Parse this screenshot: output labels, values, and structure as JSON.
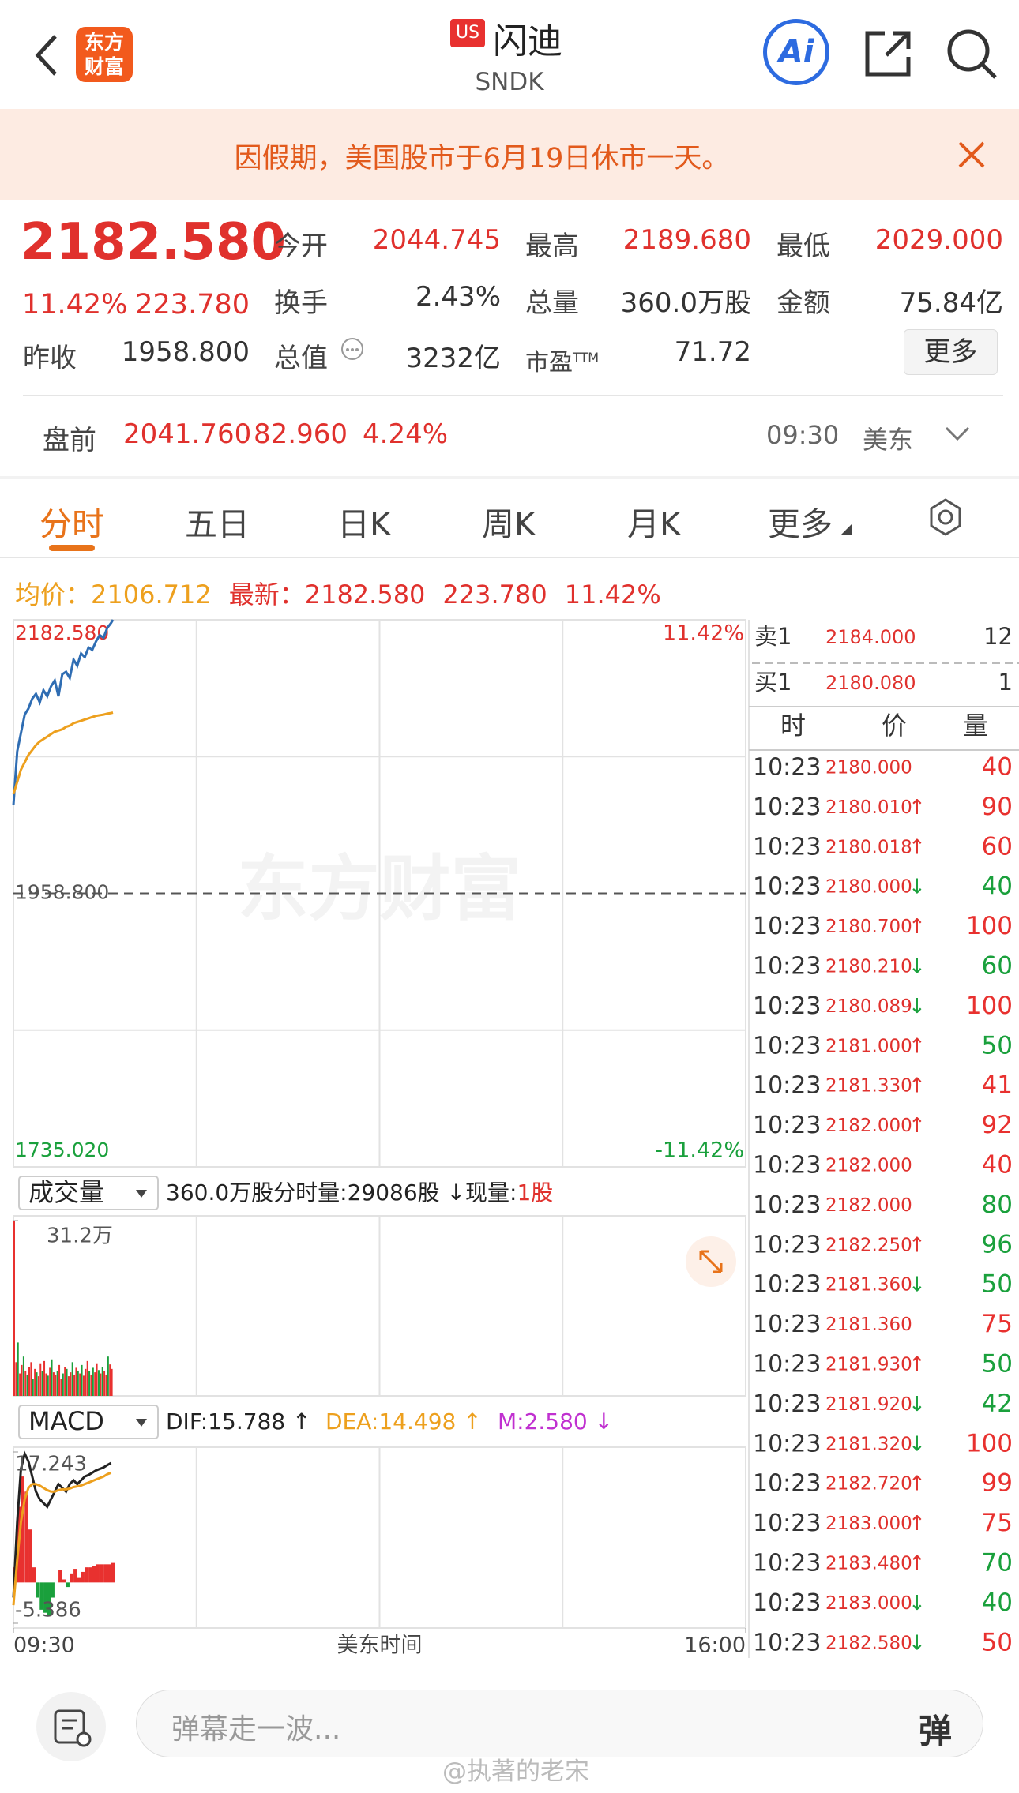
{
  "header": {
    "market_badge": "US",
    "name": "闪迪",
    "ticker": "SNDK",
    "logo_top": "东方",
    "logo_bottom": "财富",
    "ai": "Ai"
  },
  "notice": "因假期，美国股市于6月19日休市一天。",
  "quote": {
    "price": "2182.580",
    "change_pct": "11.42%",
    "change": "223.780",
    "open_label": "今开",
    "open": "2044.745",
    "high_label": "最高",
    "high": "2189.680",
    "low_label": "最低",
    "low": "2029.000",
    "turnover_label": "换手",
    "turnover": "2.43%",
    "volume_label": "总量",
    "volume": "360.0万股",
    "amount_label": "金额",
    "amount": "75.84亿",
    "prev_close_label": "昨收",
    "prev_close": "1958.800",
    "market_cap_label": "总值",
    "market_cap": "3232亿",
    "pe_label": "市盈",
    "pe_suffix": "TTM",
    "pe": "71.72",
    "more": "更多"
  },
  "premarket": {
    "label": "盘前",
    "price": "2041.760",
    "change": "82.960",
    "change_pct": "4.24%",
    "time": "09:30",
    "zone": "美东"
  },
  "tabs": [
    "分时",
    "五日",
    "日K",
    "周K",
    "月K",
    "更多"
  ],
  "summary": {
    "avg_label": "均价：",
    "avg": "2106.712",
    "latest_label": "最新：",
    "latest": "2182.580",
    "change": "223.780",
    "change_pct": "11.42%"
  },
  "intraday_chart": {
    "type": "line",
    "watermark": "东方财富",
    "xlim": [
      0,
      390
    ],
    "xticks": [
      {
        "value": 0,
        "label": "09:30"
      },
      {
        "value": 390,
        "label": "16:00"
      }
    ],
    "xlabel": "美东时间",
    "ylim": [
      1735.02,
      2182.58
    ],
    "yticks": [
      {
        "value": 1735.02,
        "label": "1735.020"
      },
      {
        "value": 1958.8,
        "label": "1958.800"
      },
      {
        "value": 2182.58,
        "label": "2182.580"
      }
    ],
    "y2lim": [
      -11.42,
      11.42
    ],
    "y2ticks": [
      {
        "value": -11.42,
        "label": "-11.42%"
      },
      {
        "value": 11.42,
        "label": "11.42%"
      }
    ],
    "x": [
      0,
      2,
      4,
      6,
      8,
      10,
      12,
      14,
      16,
      18,
      20,
      22,
      24,
      26,
      28,
      30,
      32,
      34,
      36,
      38,
      40,
      42,
      44,
      46,
      48,
      50,
      52,
      53
    ],
    "series": [
      {
        "color": "#2f6db3",
        "values": [
          2031,
          2075,
          2090,
          2105,
          2110,
          2118,
          2122,
          2115,
          2125,
          2120,
          2128,
          2133,
          2120,
          2138,
          2140,
          2135,
          2150,
          2145,
          2155,
          2152,
          2160,
          2158,
          2165,
          2170,
          2168,
          2176,
          2180,
          2182.58
        ]
      },
      {
        "color": "#eda01e",
        "values": [
          2040,
          2050,
          2060,
          2066,
          2072,
          2076,
          2080,
          2083,
          2085,
          2087,
          2089,
          2091,
          2092,
          2093,
          2095,
          2096,
          2098,
          2099,
          2100,
          2101,
          2102,
          2103,
          2104,
          2104.5,
          2105,
          2105.8,
          2106.3,
          2106.712
        ]
      }
    ]
  },
  "volume_chart": {
    "type": "bar",
    "selector": "成交量",
    "total": "360.0万股",
    "per_min_label": "分时量:",
    "per_min": "29086股 ↓",
    "now_label": "现量:",
    "now": "1股",
    "ylim": [
      0,
      312000
    ],
    "yticks": [
      {
        "value": 312000,
        "label": "31.2万"
      }
    ],
    "x": [
      0,
      1,
      2,
      3,
      4,
      5,
      6,
      7,
      8,
      9,
      10,
      11,
      12,
      13,
      14,
      15,
      16,
      17,
      18,
      19,
      20,
      21,
      22,
      23,
      24,
      25,
      26,
      27,
      28,
      29,
      30,
      31,
      32,
      33,
      34,
      35,
      36,
      37,
      38,
      39,
      40,
      41,
      42,
      43,
      44,
      45,
      46,
      47,
      48,
      49,
      50,
      51,
      52
    ],
    "values": [
      312000,
      60000,
      95000,
      40000,
      55000,
      70000,
      45000,
      38000,
      52000,
      60000,
      30000,
      48000,
      42000,
      35000,
      58000,
      44000,
      62000,
      40000,
      36000,
      50000,
      65000,
      42000,
      38000,
      45000,
      55000,
      30000,
      40000,
      52000,
      48000,
      35000,
      42000,
      60000,
      38000,
      50000,
      45000,
      40000,
      55000,
      36000,
      48000,
      62000,
      44000,
      38000,
      50000,
      42000,
      58000,
      46000,
      40000,
      52000,
      45000,
      38000,
      70000,
      56000,
      48000
    ],
    "colors": [
      "#e8312f",
      "#e8312f",
      "#1aa03c",
      "#e8312f",
      "#e8312f",
      "#1aa03c",
      "#e8312f",
      "#1aa03c",
      "#e8312f",
      "#e8312f",
      "#1aa03c",
      "#e8312f",
      "#1aa03c",
      "#e8312f",
      "#e8312f",
      "#1aa03c",
      "#e8312f",
      "#e8312f",
      "#1aa03c",
      "#e8312f",
      "#1aa03c",
      "#e8312f",
      "#e8312f",
      "#1aa03c",
      "#e8312f",
      "#e8312f",
      "#1aa03c",
      "#e8312f",
      "#1aa03c",
      "#e8312f",
      "#e8312f",
      "#1aa03c",
      "#e8312f",
      "#e8312f",
      "#1aa03c",
      "#e8312f",
      "#1aa03c",
      "#e8312f",
      "#e8312f",
      "#e8312f",
      "#1aa03c",
      "#e8312f",
      "#1aa03c",
      "#e8312f",
      "#e8312f",
      "#1aa03c",
      "#e8312f",
      "#1aa03c",
      "#e8312f",
      "#e8312f",
      "#1aa03c",
      "#e8312f",
      "#e8312f"
    ]
  },
  "macd_chart": {
    "type": "line",
    "selector": "MACD",
    "dif": "DIF:15.788 ↑",
    "dea": "DEA:14.498 ↑",
    "m": "M:2.580 ↓",
    "ylim": [
      -5.386,
      17.243
    ],
    "yticks": [
      -5.386,
      17.243
    ],
    "x": [
      0,
      2,
      4,
      6,
      8,
      10,
      12,
      14,
      16,
      18,
      20,
      22,
      24,
      26,
      28,
      30,
      32,
      34,
      36,
      38,
      40,
      42,
      44,
      46,
      48,
      50,
      52
    ],
    "series": [
      {
        "color": "#222222",
        "values": [
          -2,
          8,
          15,
          17,
          16,
          14,
          12,
          11,
          10.5,
          10,
          11,
          12,
          13,
          12.5,
          12,
          13,
          13.5,
          13,
          13.5,
          14,
          14.2,
          14.5,
          14.8,
          15,
          15.2,
          15.5,
          15.788
        ]
      },
      {
        "color": "#eda01e",
        "values": [
          -3,
          3,
          8,
          11,
          12.5,
          13,
          13,
          12.8,
          12.5,
          12.2,
          12,
          12,
          12.2,
          12.3,
          12.3,
          12.4,
          12.6,
          12.7,
          12.8,
          13,
          13.2,
          13.4,
          13.6,
          13.8,
          14,
          14.3,
          14.498
        ]
      }
    ],
    "histogram": [
      2,
      10,
      14,
      12,
      7,
      2,
      -2,
      -3.6,
      -4,
      -4.4,
      -2,
      0,
      1.6,
      0.4,
      -0.6,
      1.2,
      1.8,
      0.6,
      1.4,
      2,
      2,
      2.2,
      2.4,
      2.4,
      2.4,
      2.4,
      2.58
    ],
    "pos_color": "#e8312f",
    "neg_color": "#1aa03c"
  },
  "order_book": {
    "sell_label": "卖1",
    "sell_price": "2184.000",
    "sell_volume": "12",
    "buy_label": "买1",
    "buy_price": "2180.080",
    "buy_volume": "1",
    "col_time": "时",
    "col_price": "价",
    "col_volume": "量"
  },
  "trades": [
    {
      "time": "10:23",
      "price": "2180.000",
      "volume": "40",
      "color": "#e8312f"
    },
    {
      "time": "10:23",
      "price": "2180.010",
      "dir": "↑",
      "volume": "90",
      "color": "#e8312f"
    },
    {
      "time": "10:23",
      "price": "2180.018",
      "dir": "↑",
      "volume": "60",
      "color": "#e8312f"
    },
    {
      "time": "10:23",
      "price": "2180.000",
      "dir": "↓",
      "volume": "40",
      "color": "#1aa03c"
    },
    {
      "time": "10:23",
      "price": "2180.700",
      "dir": "↑",
      "volume": "100",
      "color": "#e8312f"
    },
    {
      "time": "10:23",
      "price": "2180.210",
      "dir": "↓",
      "volume": "60",
      "color": "#1aa03c"
    },
    {
      "time": "10:23",
      "price": "2180.089",
      "dir": "↓",
      "volume": "100",
      "color": "#e8312f"
    },
    {
      "time": "10:23",
      "price": "2181.000",
      "dir": "↑",
      "volume": "50",
      "color": "#1aa03c"
    },
    {
      "time": "10:23",
      "price": "2181.330",
      "dir": "↑",
      "volume": "41",
      "color": "#e8312f"
    },
    {
      "time": "10:23",
      "price": "2182.000",
      "dir": "↑",
      "volume": "92",
      "color": "#e8312f"
    },
    {
      "time": "10:23",
      "price": "2182.000",
      "volume": "40",
      "color": "#e8312f"
    },
    {
      "time": "10:23",
      "price": "2182.000",
      "volume": "80",
      "color": "#1aa03c"
    },
    {
      "time": "10:23",
      "price": "2182.250",
      "dir": "↑",
      "volume": "96",
      "color": "#1aa03c"
    },
    {
      "time": "10:23",
      "price": "2181.360",
      "dir": "↓",
      "volume": "50",
      "color": "#1aa03c"
    },
    {
      "time": "10:23",
      "price": "2181.360",
      "volume": "75",
      "color": "#e8312f"
    },
    {
      "time": "10:23",
      "price": "2181.930",
      "dir": "↑",
      "volume": "50",
      "color": "#1aa03c"
    },
    {
      "time": "10:23",
      "price": "2181.920",
      "dir": "↓",
      "volume": "42",
      "color": "#1aa03c"
    },
    {
      "time": "10:23",
      "price": "2181.320",
      "dir": "↓",
      "volume": "100",
      "color": "#e8312f"
    },
    {
      "time": "10:23",
      "price": "2182.720",
      "dir": "↑",
      "volume": "99",
      "color": "#e8312f"
    },
    {
      "time": "10:23",
      "price": "2183.000",
      "dir": "↑",
      "volume": "75",
      "color": "#e8312f"
    },
    {
      "time": "10:23",
      "price": "2183.480",
      "dir": "↑",
      "volume": "70",
      "color": "#1aa03c"
    },
    {
      "time": "10:23",
      "price": "2183.000",
      "dir": "↓",
      "volume": "40",
      "color": "#1aa03c"
    },
    {
      "time": "10:23",
      "price": "2182.580",
      "dir": "↓",
      "volume": "50",
      "color": "#e8312f"
    }
  ],
  "footer": {
    "placeholder": "弹幕走一波...",
    "send": "弹",
    "watermark": "@执著的老宋"
  }
}
